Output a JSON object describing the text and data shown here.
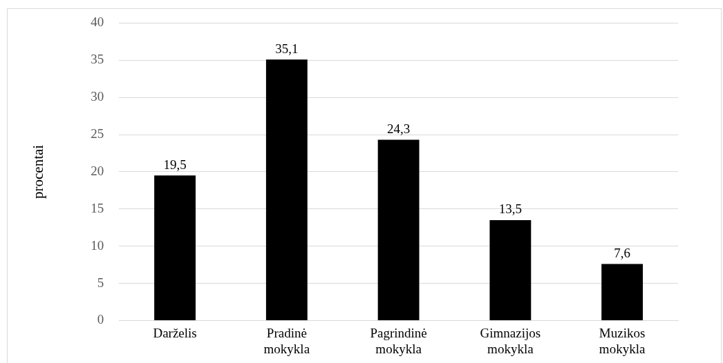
{
  "chart_data": {
    "type": "bar",
    "ylabel": "procentai",
    "categories": [
      "Darželis",
      "Pradinė mokykla",
      "Pagrindinė mokykla",
      "Gimnazijos mokykla",
      "Muzikos mokykla"
    ],
    "values": [
      19.5,
      35.1,
      24.3,
      13.5,
      7.6
    ],
    "value_labels": [
      "19,5",
      "35,1",
      "24,3",
      "13,5",
      "7,6"
    ],
    "color": "#000000",
    "ylim": [
      0,
      40
    ],
    "yticks": [
      0,
      5,
      10,
      15,
      20,
      25,
      30,
      35,
      40
    ],
    "grid": "y",
    "legend": false
  }
}
